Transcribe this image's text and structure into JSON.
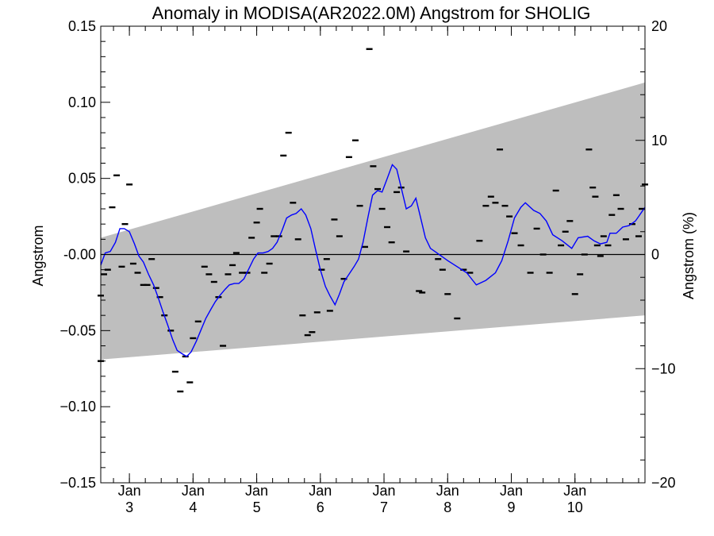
{
  "chart_data": {
    "type": "line",
    "title": "Anomaly in MODISA(AR2022.0M) Angstrom for SHOLIG",
    "xlabel": "",
    "ylabel": "Angstrom",
    "ylabel_right": "Angstrom (%)",
    "xlim": [
      2.55,
      11.1
    ],
    "ylim": [
      -0.15,
      0.15
    ],
    "ylim_right": [
      -20,
      20
    ],
    "x_ticks": [
      {
        "value": 3,
        "line1": "Jan",
        "line2": "3"
      },
      {
        "value": 4,
        "line1": "Jan",
        "line2": "4"
      },
      {
        "value": 5,
        "line1": "Jan",
        "line2": "5"
      },
      {
        "value": 6,
        "line1": "Jan",
        "line2": "6"
      },
      {
        "value": 7,
        "line1": "Jan",
        "line2": "7"
      },
      {
        "value": 8,
        "line1": "Jan",
        "line2": "8"
      },
      {
        "value": 9,
        "line1": "Jan",
        "line2": "9"
      },
      {
        "value": 10,
        "line1": "Jan",
        "line2": "10"
      }
    ],
    "y_ticks": [
      {
        "value": 0.15,
        "label": "0.15"
      },
      {
        "value": 0.1,
        "label": "0.10"
      },
      {
        "value": 0.05,
        "label": "0.05"
      },
      {
        "value": 0.0,
        "label": "-0.00"
      },
      {
        "value": -0.05,
        "label": "−0.05"
      },
      {
        "value": -0.1,
        "label": "−0.10"
      },
      {
        "value": -0.15,
        "label": "−0.15"
      }
    ],
    "y_ticks_right": [
      {
        "value": 20,
        "label": "20"
      },
      {
        "value": 10,
        "label": "10"
      },
      {
        "value": 0,
        "label": "0"
      },
      {
        "value": -10,
        "label": "−10"
      },
      {
        "value": -20,
        "label": "−20"
      }
    ],
    "zero_line": 0,
    "band": {
      "color": "#bebebe",
      "upper": [
        [
          2.55,
          0.011
        ],
        [
          11.1,
          0.113
        ]
      ],
      "lower": [
        [
          2.55,
          -0.069
        ],
        [
          11.1,
          -0.04
        ]
      ]
    },
    "series": [
      {
        "color": "#0000ff",
        "values": [
          [
            2.55,
            -0.007
          ],
          [
            2.62,
            0.001
          ],
          [
            2.7,
            0.002
          ],
          [
            2.78,
            0.008
          ],
          [
            2.85,
            0.017
          ],
          [
            2.92,
            0.017
          ],
          [
            3.0,
            0.015
          ],
          [
            3.08,
            0.007
          ],
          [
            3.15,
            -0.001
          ],
          [
            3.22,
            -0.005
          ],
          [
            3.3,
            -0.013
          ],
          [
            3.38,
            -0.02
          ],
          [
            3.45,
            -0.028
          ],
          [
            3.53,
            -0.038
          ],
          [
            3.6,
            -0.046
          ],
          [
            3.68,
            -0.056
          ],
          [
            3.75,
            -0.063
          ],
          [
            3.82,
            -0.065
          ],
          [
            3.9,
            -0.067
          ],
          [
            3.97,
            -0.064
          ],
          [
            4.05,
            -0.057
          ],
          [
            4.12,
            -0.05
          ],
          [
            4.2,
            -0.042
          ],
          [
            4.28,
            -0.036
          ],
          [
            4.35,
            -0.031
          ],
          [
            4.42,
            -0.027
          ],
          [
            4.5,
            -0.023
          ],
          [
            4.57,
            -0.02
          ],
          [
            4.65,
            -0.019
          ],
          [
            4.72,
            -0.019
          ],
          [
            4.8,
            -0.016
          ],
          [
            4.87,
            -0.01
          ],
          [
            4.95,
            -0.003
          ],
          [
            5.02,
            0.001
          ],
          [
            5.1,
            0.001
          ],
          [
            5.18,
            0.002
          ],
          [
            5.25,
            0.004
          ],
          [
            5.32,
            0.008
          ],
          [
            5.4,
            0.016
          ],
          [
            5.47,
            0.024
          ],
          [
            5.55,
            0.026
          ],
          [
            5.62,
            0.027
          ],
          [
            5.7,
            0.03
          ],
          [
            5.77,
            0.026
          ],
          [
            5.85,
            0.017
          ],
          [
            5.92,
            0.004
          ],
          [
            6.0,
            -0.01
          ],
          [
            6.08,
            -0.021
          ],
          [
            6.15,
            -0.027
          ],
          [
            6.23,
            -0.033
          ],
          [
            6.3,
            -0.026
          ],
          [
            6.37,
            -0.018
          ],
          [
            6.45,
            -0.013
          ],
          [
            6.53,
            -0.008
          ],
          [
            6.6,
            -0.003
          ],
          [
            6.67,
            0.008
          ],
          [
            6.75,
            0.025
          ],
          [
            6.82,
            0.039
          ],
          [
            6.9,
            0.042
          ],
          [
            6.97,
            0.041
          ],
          [
            7.05,
            0.05
          ],
          [
            7.13,
            0.059
          ],
          [
            7.2,
            0.056
          ],
          [
            7.27,
            0.044
          ],
          [
            7.35,
            0.03
          ],
          [
            7.43,
            0.032
          ],
          [
            7.5,
            0.037
          ],
          [
            7.57,
            0.025
          ],
          [
            7.65,
            0.011
          ],
          [
            7.73,
            0.004
          ],
          [
            7.8,
            0.002
          ],
          [
            8.0,
            -0.004
          ],
          [
            8.3,
            -0.012
          ],
          [
            8.45,
            -0.02
          ],
          [
            8.6,
            -0.017
          ],
          [
            8.75,
            -0.012
          ],
          [
            8.85,
            -0.004
          ],
          [
            8.95,
            0.009
          ],
          [
            9.05,
            0.024
          ],
          [
            9.15,
            0.031
          ],
          [
            9.22,
            0.034
          ],
          [
            9.35,
            0.029
          ],
          [
            9.45,
            0.027
          ],
          [
            9.55,
            0.022
          ],
          [
            9.65,
            0.013
          ],
          [
            9.8,
            0.009
          ],
          [
            9.95,
            0.004
          ],
          [
            10.05,
            0.011
          ],
          [
            10.2,
            0.012
          ],
          [
            10.3,
            0.009
          ],
          [
            10.4,
            0.007
          ],
          [
            10.5,
            0.008
          ],
          [
            10.55,
            0.014
          ],
          [
            10.65,
            0.014
          ],
          [
            10.75,
            0.018
          ],
          [
            10.85,
            0.019
          ],
          [
            10.95,
            0.022
          ],
          [
            11.0,
            0.025
          ],
          [
            11.05,
            0.028
          ],
          [
            11.1,
            0.031
          ]
        ]
      }
    ],
    "points": [
      [
        2.55,
        -0.027
      ],
      [
        2.55,
        -0.07
      ],
      [
        2.6,
        -0.013
      ],
      [
        2.66,
        -0.01
      ],
      [
        2.73,
        0.031
      ],
      [
        2.8,
        0.052
      ],
      [
        2.88,
        -0.008
      ],
      [
        2.93,
        0.02
      ],
      [
        3.0,
        0.046
      ],
      [
        3.06,
        -0.006
      ],
      [
        3.13,
        -0.012
      ],
      [
        3.22,
        -0.02
      ],
      [
        3.28,
        -0.02
      ],
      [
        3.35,
        -0.003
      ],
      [
        3.42,
        -0.022
      ],
      [
        3.48,
        -0.028
      ],
      [
        3.55,
        -0.04
      ],
      [
        3.65,
        -0.05
      ],
      [
        3.72,
        -0.077
      ],
      [
        3.8,
        -0.09
      ],
      [
        3.88,
        -0.067
      ],
      [
        3.95,
        -0.084
      ],
      [
        4.0,
        -0.055
      ],
      [
        4.08,
        -0.044
      ],
      [
        4.18,
        -0.008
      ],
      [
        4.25,
        -0.013
      ],
      [
        4.33,
        -0.018
      ],
      [
        4.4,
        -0.028
      ],
      [
        4.47,
        -0.06
      ],
      [
        4.55,
        -0.013
      ],
      [
        4.62,
        -0.007
      ],
      [
        4.68,
        0.001
      ],
      [
        4.77,
        -0.012
      ],
      [
        4.85,
        -0.012
      ],
      [
        4.92,
        0.011
      ],
      [
        5.0,
        0.021
      ],
      [
        5.05,
        0.03
      ],
      [
        5.12,
        -0.012
      ],
      [
        5.2,
        -0.006
      ],
      [
        5.27,
        0.012
      ],
      [
        5.35,
        0.012
      ],
      [
        5.42,
        0.065
      ],
      [
        5.5,
        0.08
      ],
      [
        5.57,
        0.034
      ],
      [
        5.65,
        0.01
      ],
      [
        5.72,
        -0.04
      ],
      [
        5.8,
        -0.053
      ],
      [
        5.87,
        -0.051
      ],
      [
        5.95,
        -0.038
      ],
      [
        6.02,
        -0.01
      ],
      [
        6.1,
        -0.003
      ],
      [
        6.15,
        -0.037
      ],
      [
        6.22,
        0.023
      ],
      [
        6.3,
        0.012
      ],
      [
        6.37,
        -0.016
      ],
      [
        6.45,
        0.064
      ],
      [
        6.55,
        0.075
      ],
      [
        6.62,
        0.032
      ],
      [
        6.7,
        0.005
      ],
      [
        6.77,
        0.135
      ],
      [
        6.83,
        0.058
      ],
      [
        6.9,
        0.043
      ],
      [
        6.97,
        0.03
      ],
      [
        7.05,
        0.018
      ],
      [
        7.12,
        0.008
      ],
      [
        7.2,
        0.041
      ],
      [
        7.27,
        0.044
      ],
      [
        7.35,
        0.002
      ],
      [
        7.55,
        -0.024
      ],
      [
        7.6,
        -0.025
      ],
      [
        7.85,
        -0.003
      ],
      [
        7.92,
        -0.01
      ],
      [
        8.0,
        -0.026
      ],
      [
        8.15,
        -0.042
      ],
      [
        8.25,
        -0.01
      ],
      [
        8.35,
        -0.012
      ],
      [
        8.5,
        0.009
      ],
      [
        8.6,
        0.032
      ],
      [
        8.68,
        0.038
      ],
      [
        8.75,
        0.034
      ],
      [
        8.82,
        0.069
      ],
      [
        8.9,
        0.032
      ],
      [
        8.97,
        0.025
      ],
      [
        9.05,
        0.014
      ],
      [
        9.15,
        0.006
      ],
      [
        9.3,
        -0.012
      ],
      [
        9.4,
        0.017
      ],
      [
        9.5,
        0.0
      ],
      [
        9.6,
        -0.012
      ],
      [
        9.7,
        0.042
      ],
      [
        9.78,
        0.006
      ],
      [
        9.85,
        0.015
      ],
      [
        9.92,
        0.022
      ],
      [
        10.0,
        -0.026
      ],
      [
        10.08,
        -0.013
      ],
      [
        10.15,
        0.0
      ],
      [
        10.22,
        0.069
      ],
      [
        10.28,
        0.044
      ],
      [
        10.32,
        0.038
      ],
      [
        10.35,
        0.006
      ],
      [
        10.4,
        -0.001
      ],
      [
        10.45,
        0.012
      ],
      [
        10.52,
        0.006
      ],
      [
        10.58,
        0.026
      ],
      [
        10.65,
        0.039
      ],
      [
        10.72,
        0.03
      ],
      [
        10.8,
        0.01
      ],
      [
        10.9,
        0.02
      ],
      [
        11.0,
        0.012
      ],
      [
        11.05,
        0.03
      ],
      [
        11.1,
        0.046
      ]
    ]
  }
}
